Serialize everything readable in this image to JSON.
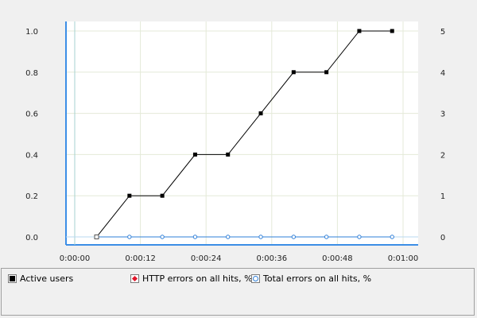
{
  "chart_data": {
    "type": "line",
    "x": [
      "0:00:04",
      "0:00:10",
      "0:00:16",
      "0:00:22",
      "0:00:28",
      "0:00:34",
      "0:00:40",
      "0:00:46",
      "0:00:52",
      "0:00:58"
    ],
    "x_ticks": [
      "0:00:00",
      "0:00:12",
      "0:00:24",
      "0:00:36",
      "0:00:48",
      "0:01:00"
    ],
    "y_left_ticks": [
      "0.0",
      "0.2",
      "0.4",
      "0.6",
      "0.8",
      "1.0"
    ],
    "y_right_ticks": [
      "0",
      "1",
      "2",
      "3",
      "4",
      "5"
    ],
    "ylim_left": [
      0,
      1
    ],
    "ylim_right": [
      0,
      5
    ],
    "xlim_seconds": [
      0,
      60
    ],
    "grid": true,
    "legend_position": "bottom",
    "series": [
      {
        "name": "Active users",
        "axis": "right",
        "color": "#000000",
        "marker": "square",
        "values": [
          0,
          1,
          1,
          2,
          2,
          3,
          4,
          4,
          5,
          5
        ]
      },
      {
        "name": "HTTP errors on all hits, %",
        "axis": "left",
        "color": "#e0162b",
        "marker": "diamond",
        "values": [
          0,
          0,
          0,
          0,
          0,
          0,
          0,
          0,
          0,
          0
        ]
      },
      {
        "name": "Total errors on all hits, %",
        "axis": "left",
        "color": "#2f7fd8",
        "marker": "circle",
        "values": [
          0,
          0,
          0,
          0,
          0,
          0,
          0,
          0,
          0,
          0
        ]
      }
    ]
  },
  "legend": {
    "active_users": "Active users",
    "http_errors": "HTTP errors on all hits, %",
    "total_errors": "Total errors on all hits, %"
  }
}
